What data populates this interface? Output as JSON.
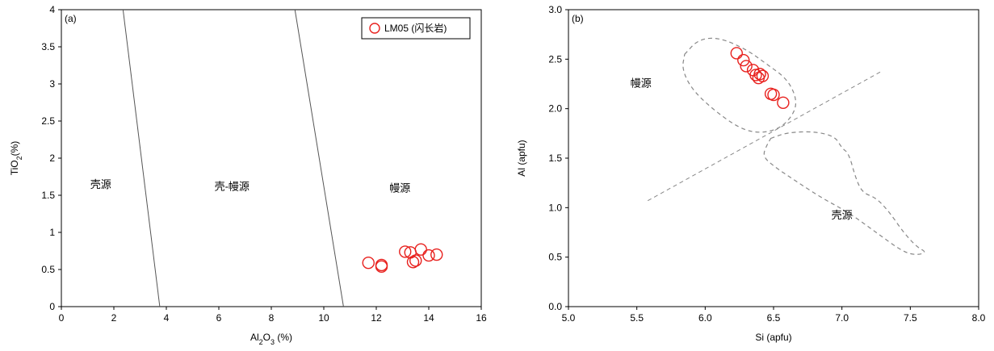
{
  "chart_data": [
    {
      "type": "scatter",
      "panel_label": "(a)",
      "xlabel": "Al2O3 (%)",
      "xlabel_parts": [
        "Al",
        "2",
        "O",
        "3",
        " (%)"
      ],
      "ylabel": "TiO2(%)",
      "ylabel_parts": [
        "TiO",
        "2",
        "(%)"
      ],
      "xlim": [
        0,
        16
      ],
      "ylim": [
        0,
        4
      ],
      "xticks": [
        0,
        2,
        4,
        6,
        8,
        10,
        12,
        14,
        16
      ],
      "xtick_labels": [
        "0",
        "2",
        "4",
        "6",
        "8",
        "10",
        "12",
        "14",
        "16"
      ],
      "yticks": [
        0,
        0.5,
        1,
        1.5,
        2,
        2.5,
        3,
        3.5,
        4
      ],
      "ytick_labels": [
        "0",
        "0.5",
        "1",
        "1.5",
        "2",
        "2.5",
        "3",
        "3.5",
        "4"
      ],
      "grid": false,
      "legend_position": "top-right",
      "series": [
        {
          "name": "LM05 (闪长岩)",
          "color": "#e8211e",
          "x": [
            11.7,
            12.2,
            12.2,
            13.1,
            13.3,
            13.4,
            13.5,
            13.7,
            14.0,
            14.3
          ],
          "y": [
            0.59,
            0.54,
            0.56,
            0.74,
            0.73,
            0.6,
            0.62,
            0.77,
            0.69,
            0.7
          ]
        }
      ],
      "boundaries": [
        {
          "x": [
            2.35,
            3.75
          ],
          "y": [
            4,
            0
          ],
          "color": "#555555",
          "style": "solid"
        },
        {
          "x": [
            8.9,
            10.75
          ],
          "y": [
            4,
            0
          ],
          "color": "#555555",
          "style": "solid"
        }
      ],
      "regions": [
        {
          "label": "壳源",
          "x": 1.5,
          "y": 1.6
        },
        {
          "label": "壳-幔源",
          "x": 6.5,
          "y": 1.57
        },
        {
          "label": "幔源",
          "x": 12.9,
          "y": 1.55
        }
      ]
    },
    {
      "type": "scatter",
      "panel_label": "(b)",
      "xlabel": "Si (apfu)",
      "ylabel": "Al (apfu)",
      "xlim": [
        5.0,
        8.0
      ],
      "ylim": [
        0.0,
        3.0
      ],
      "xticks": [
        5.0,
        5.5,
        6.0,
        6.5,
        7.0,
        7.5,
        8.0
      ],
      "xtick_labels": [
        "5.0",
        "5.5",
        "6.0",
        "6.5",
        "7.0",
        "7.5",
        "8.0"
      ],
      "yticks": [
        0.0,
        0.5,
        1.0,
        1.5,
        2.0,
        2.5,
        3.0
      ],
      "ytick_labels": [
        "0.0",
        "0.5",
        "1.0",
        "1.5",
        "2.0",
        "2.5",
        "3.0"
      ],
      "grid": false,
      "series": [
        {
          "color": "#e8211e",
          "x": [
            6.23,
            6.28,
            6.3,
            6.35,
            6.37,
            6.39,
            6.4,
            6.42,
            6.48,
            6.5,
            6.57
          ],
          "y": [
            2.56,
            2.49,
            2.43,
            2.39,
            2.34,
            2.31,
            2.35,
            2.33,
            2.15,
            2.14,
            2.06
          ]
        }
      ],
      "boundaries": [
        {
          "x": [
            5.58,
            7.28
          ],
          "y": [
            1.07,
            2.37
          ],
          "color": "#888888",
          "style": "dashed"
        }
      ],
      "fields": [
        {
          "name": "mantle-field",
          "color": "#888888",
          "style": "dashed",
          "x": [
            5.85,
            5.95,
            6.1,
            6.3,
            6.45,
            6.6,
            6.67,
            6.65,
            6.55,
            6.4,
            6.25,
            6.05,
            5.9,
            5.83,
            5.85
          ],
          "y": [
            2.55,
            2.7,
            2.72,
            2.6,
            2.45,
            2.3,
            2.1,
            1.95,
            1.8,
            1.75,
            1.8,
            2.0,
            2.2,
            2.4,
            2.55
          ]
        },
        {
          "name": "crust-field",
          "color": "#888888",
          "style": "dashed",
          "x": [
            6.48,
            6.6,
            6.8,
            6.95,
            7.0,
            7.05,
            7.1,
            7.15,
            7.25,
            7.35,
            7.45,
            7.55,
            7.62,
            7.55,
            7.45,
            7.25,
            7.05,
            6.85,
            6.65,
            6.5,
            6.42,
            6.45,
            6.48
          ],
          "y": [
            1.7,
            1.76,
            1.77,
            1.72,
            1.6,
            1.55,
            1.3,
            1.15,
            1.1,
            0.95,
            0.75,
            0.6,
            0.55,
            0.52,
            0.55,
            0.75,
            0.95,
            1.1,
            1.28,
            1.42,
            1.52,
            1.63,
            1.7
          ]
        }
      ],
      "regions": [
        {
          "label": "幔源",
          "x": 5.53,
          "y": 2.22
        },
        {
          "label": "壳源",
          "x": 7.0,
          "y": 0.89
        }
      ]
    }
  ]
}
